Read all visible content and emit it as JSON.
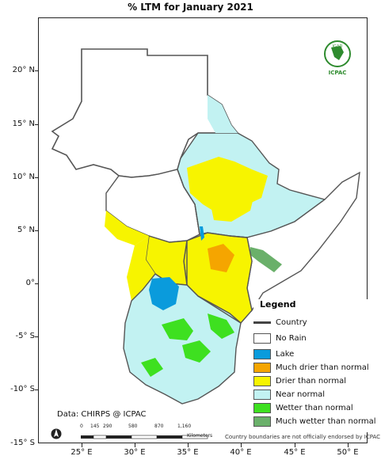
{
  "title": "% LTM  for   January 2021",
  "latitude_labels": [
    "20° N",
    "15° N",
    "10° N",
    "5° N",
    "0°",
    "-5° S",
    "-10° S",
    "-15° S"
  ],
  "longitude_labels": [
    "25° E",
    "30° E",
    "35° E",
    "40° E",
    "45° E",
    "50° E"
  ],
  "legend": {
    "title": "Legend",
    "items": [
      {
        "label": "Country",
        "kind": "line",
        "color": "#444444"
      },
      {
        "label": "No Rain",
        "kind": "box",
        "color": "#ffffff"
      },
      {
        "label": "Lake",
        "kind": "box",
        "color": "#0a9bdc"
      },
      {
        "label": "Much drier than normal",
        "kind": "box",
        "color": "#f5a500"
      },
      {
        "label": "Drier than normal",
        "kind": "box",
        "color": "#f7f400"
      },
      {
        "label": "Near normal",
        "kind": "box",
        "color": "#c2f2f2"
      },
      {
        "label": "Wetter than normal",
        "kind": "box",
        "color": "#3ee020"
      },
      {
        "label": "Much wetter than normal",
        "kind": "box",
        "color": "#6ab06a"
      }
    ]
  },
  "source": "Data: CHIRPS @ ICPAC",
  "disclaimer": "Country boundaries are not officially endorsed by ICPAC",
  "scale": {
    "labels": [
      "0",
      "145",
      "290",
      "580",
      "870",
      "1,160"
    ],
    "unit": "Kilometers"
  },
  "logo": {
    "top_text": "IGAD",
    "bottom_text": "ICPAC"
  },
  "north_arrow": "north-arrow-icon"
}
